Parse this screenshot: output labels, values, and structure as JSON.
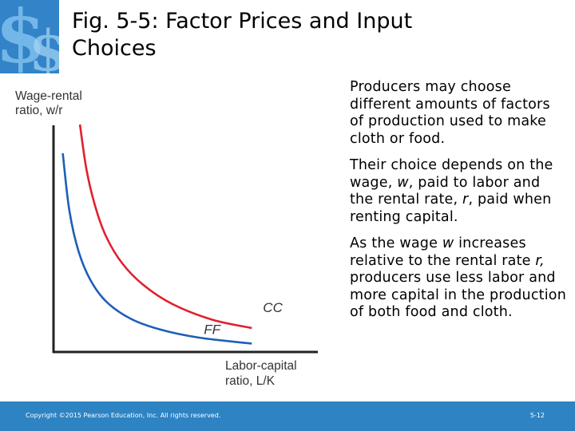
{
  "slide": {
    "title_line1": "Fig. 5-5:  Factor Prices and Input",
    "title_line2": "Choices"
  },
  "logo": {
    "icon": "dollar-sign-logo-icon"
  },
  "chart_data": {
    "type": "line",
    "ylabel_line1": "Wage-rental",
    "ylabel_line2": "ratio, w/r",
    "xlabel_line1": "Labor-capital",
    "xlabel_line2": "ratio, L/K",
    "xlim": [
      0,
      10
    ],
    "ylim": [
      0,
      10
    ],
    "grid": false,
    "series": [
      {
        "name": "CC",
        "color": "#e0202e",
        "x": [
          1.0,
          1.25,
          1.6,
          2.0,
          2.6,
          3.4,
          4.5,
          6.0,
          7.5
        ],
        "y": [
          9.5,
          7.6,
          6.0,
          4.8,
          3.7,
          2.8,
          2.0,
          1.35,
          1.0
        ]
      },
      {
        "name": "FF",
        "color": "#1e5fb5",
        "x": [
          0.35,
          0.6,
          0.95,
          1.4,
          2.0,
          2.9,
          4.0,
          5.5,
          7.5
        ],
        "y": [
          8.3,
          5.9,
          4.2,
          3.0,
          2.1,
          1.4,
          0.95,
          0.6,
          0.35
        ]
      }
    ]
  },
  "text": {
    "p1": "Producers may choose different amounts of factors of production used to make cloth or food.",
    "p2_a": "Their choice depends on the wage, ",
    "p2_w": "w",
    "p2_b": ", paid to labor and the rental rate, ",
    "p2_r": "r",
    "p2_c": ", paid when renting capital.",
    "p3_a": "As the wage ",
    "p3_w": "w",
    "p3_b": " increases relative to the rental rate ",
    "p3_r": "r,",
    "p3_c": " producers use less labor and more capital in the production of both food and cloth."
  },
  "footer": {
    "copyright": "Copyright ©2015 Pearson Education, Inc. All rights reserved.",
    "page_number": "5-12"
  }
}
